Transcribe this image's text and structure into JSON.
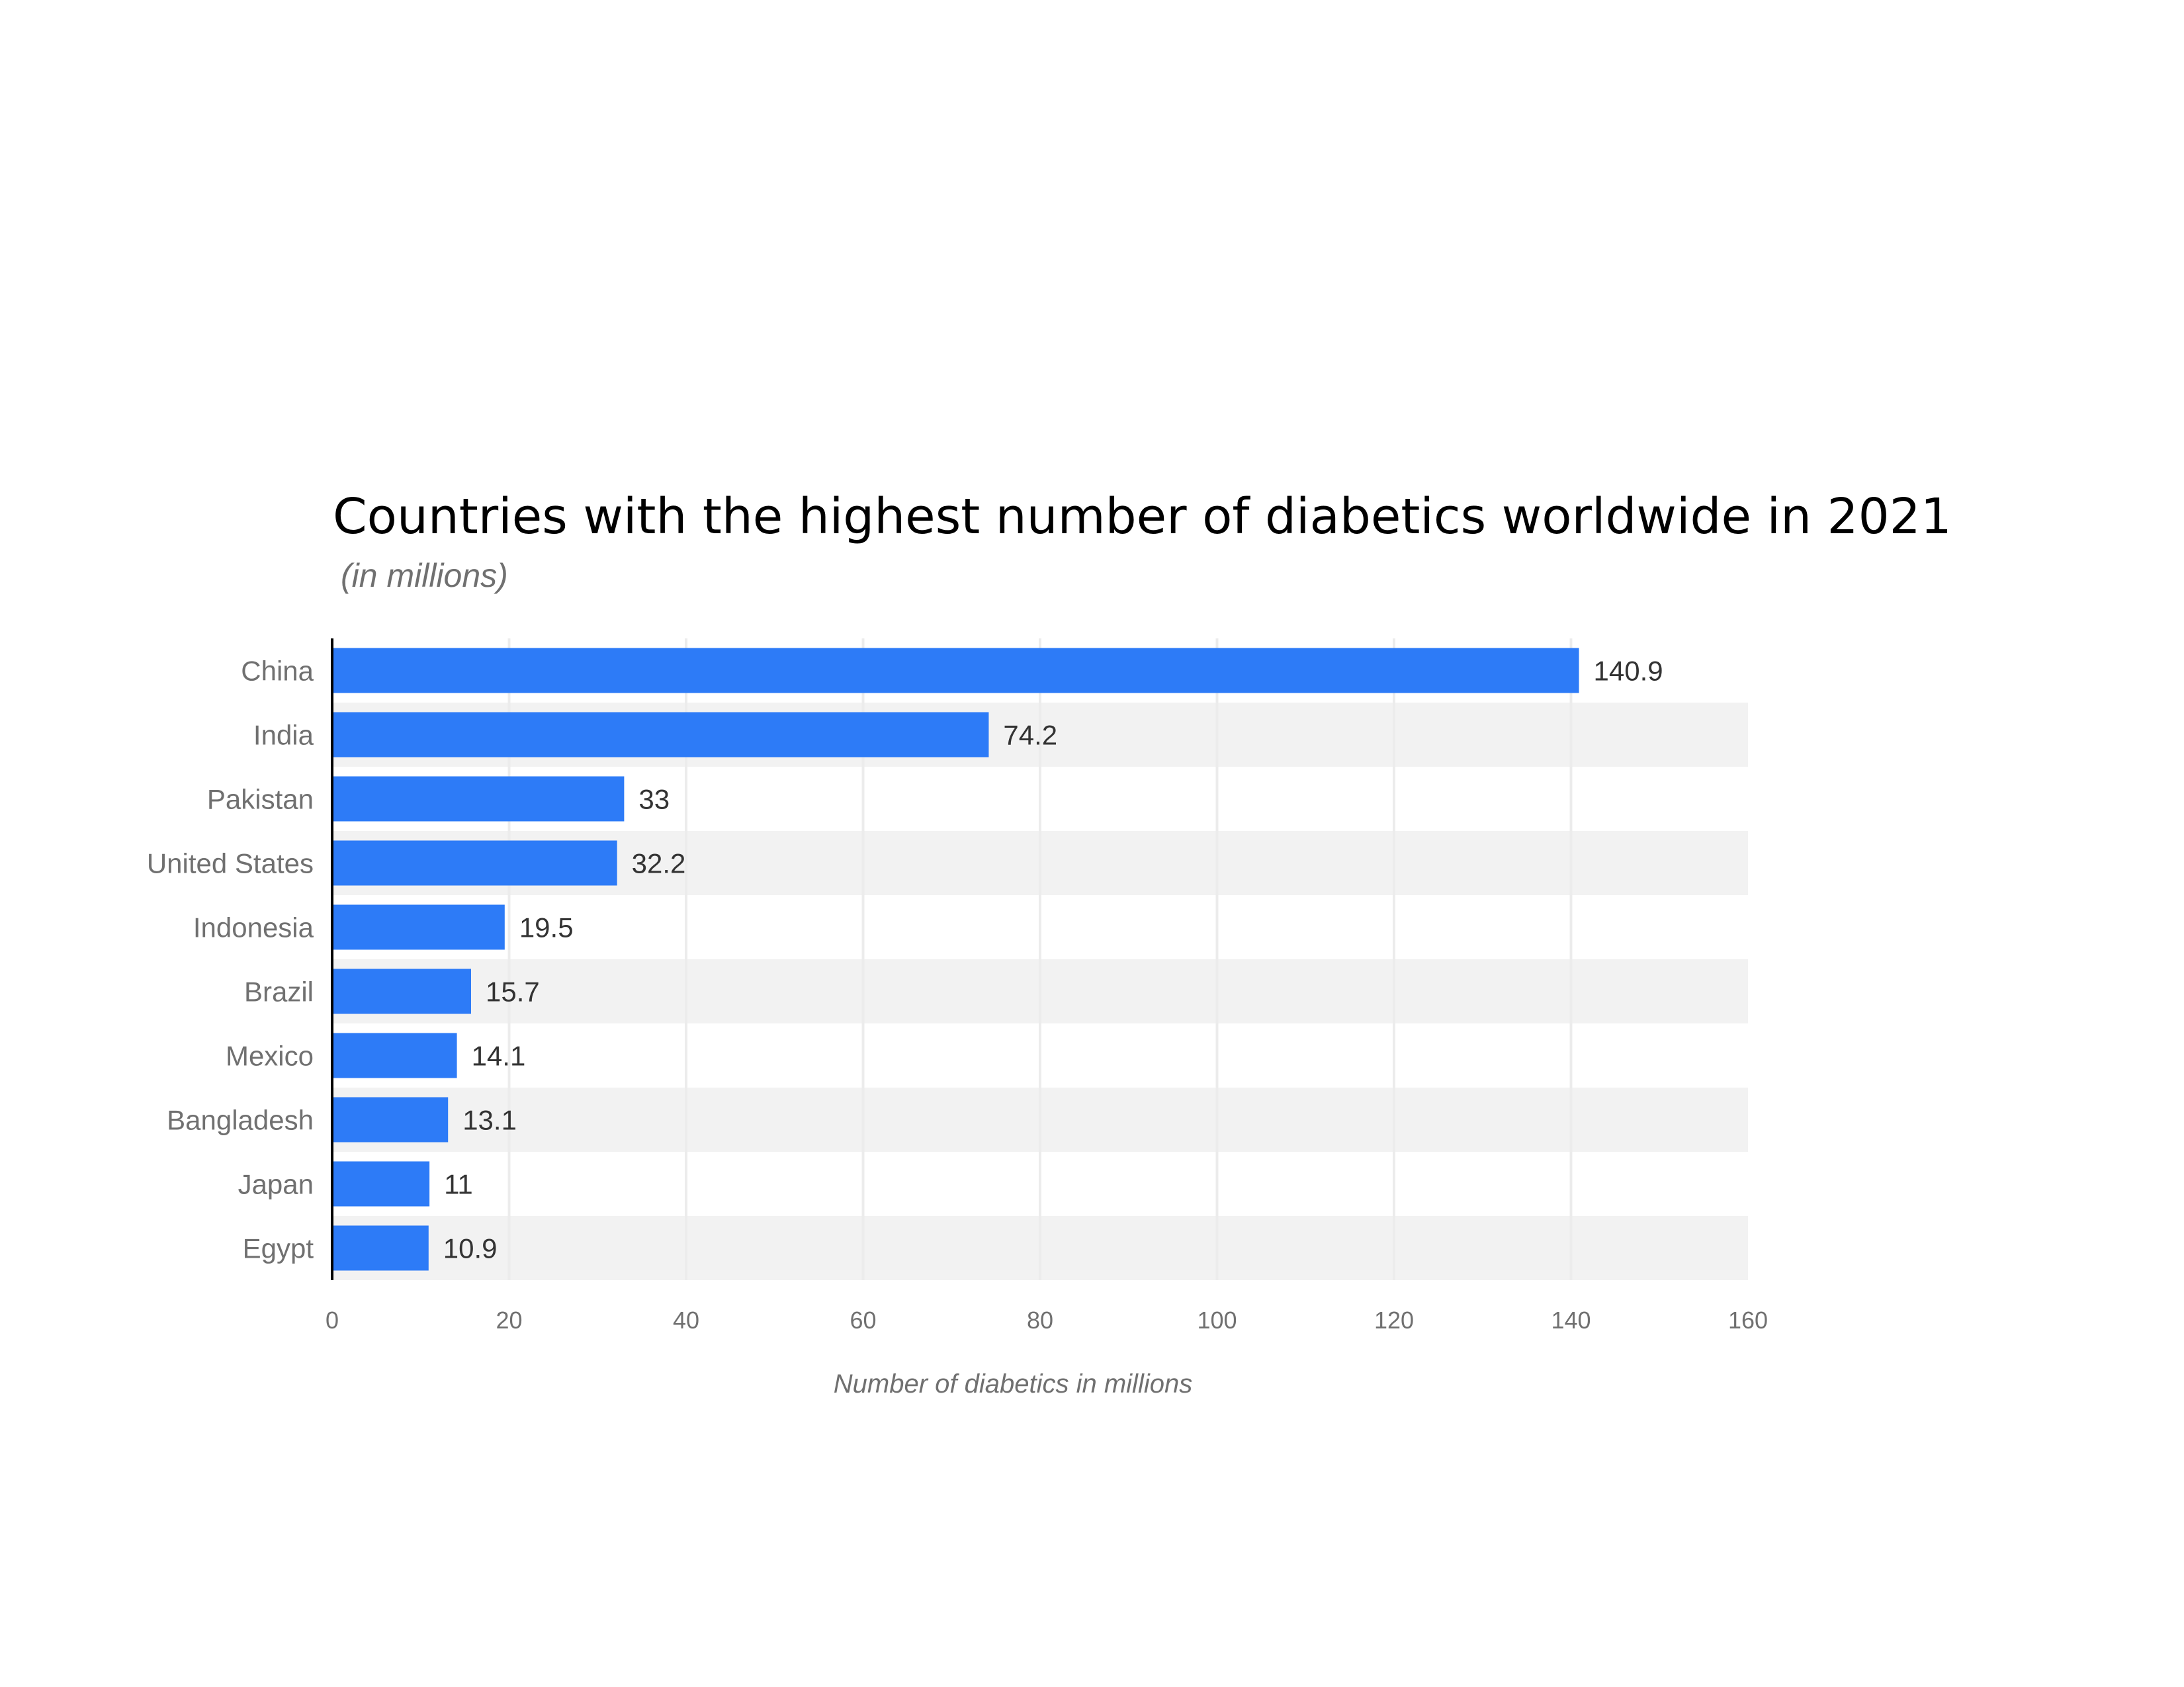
{
  "chart_data": {
    "type": "bar",
    "orientation": "horizontal",
    "title": "Countries with the highest number of diabetics worldwide in 2021",
    "subtitle": "(in millions)",
    "xlabel": "Number of diabetics in millions",
    "ylabel": "",
    "categories": [
      "China",
      "India",
      "Pakistan",
      "United States",
      "Indonesia",
      "Brazil",
      "Mexico",
      "Bangladesh",
      "Japan",
      "Egypt"
    ],
    "values": [
      140.9,
      74.2,
      33,
      32.2,
      19.5,
      15.7,
      14.1,
      13.1,
      11,
      10.9
    ],
    "value_labels": [
      "140.9",
      "74.2",
      "33",
      "32.2",
      "19.5",
      "15.7",
      "14.1",
      "13.1",
      "11",
      "10.9"
    ],
    "xlim": [
      0,
      160
    ],
    "ticks": [
      "0",
      "20",
      "40",
      "60",
      "80",
      "100",
      "120",
      "140",
      "160"
    ],
    "grid": true,
    "bar_color": "#2d7bf7",
    "band_color": "#f2f2f2"
  }
}
